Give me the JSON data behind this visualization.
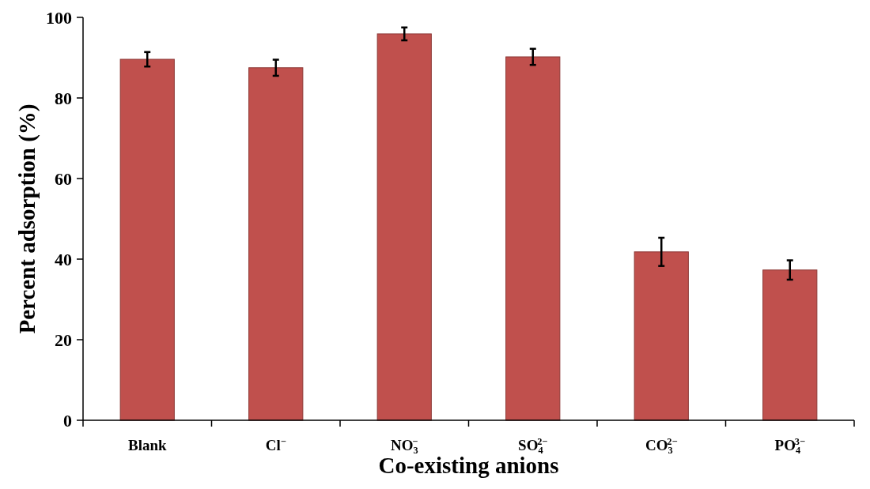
{
  "chart_data": {
    "type": "bar",
    "xlabel": "Co-existing anions",
    "ylabel": "Percent adsorption (%)",
    "categories": [
      "Blank",
      "Cl$^{−}$",
      "NO$_{3}$$^{−}$",
      "SO$_{4}$$^{2−}$",
      "CO$_{3}$$^{2−}$",
      "PO$_{4}$$^{3−}$"
    ],
    "values": [
      89.6,
      87.5,
      95.9,
      90.2,
      41.8,
      37.3
    ],
    "errors": [
      1.8,
      2,
      1.6,
      2,
      3.5,
      2.4
    ],
    "color": "#c0504d",
    "ylim": [
      0,
      100
    ],
    "yticks": [
      0,
      20,
      40,
      60,
      80,
      100
    ],
    "grid": false
  }
}
